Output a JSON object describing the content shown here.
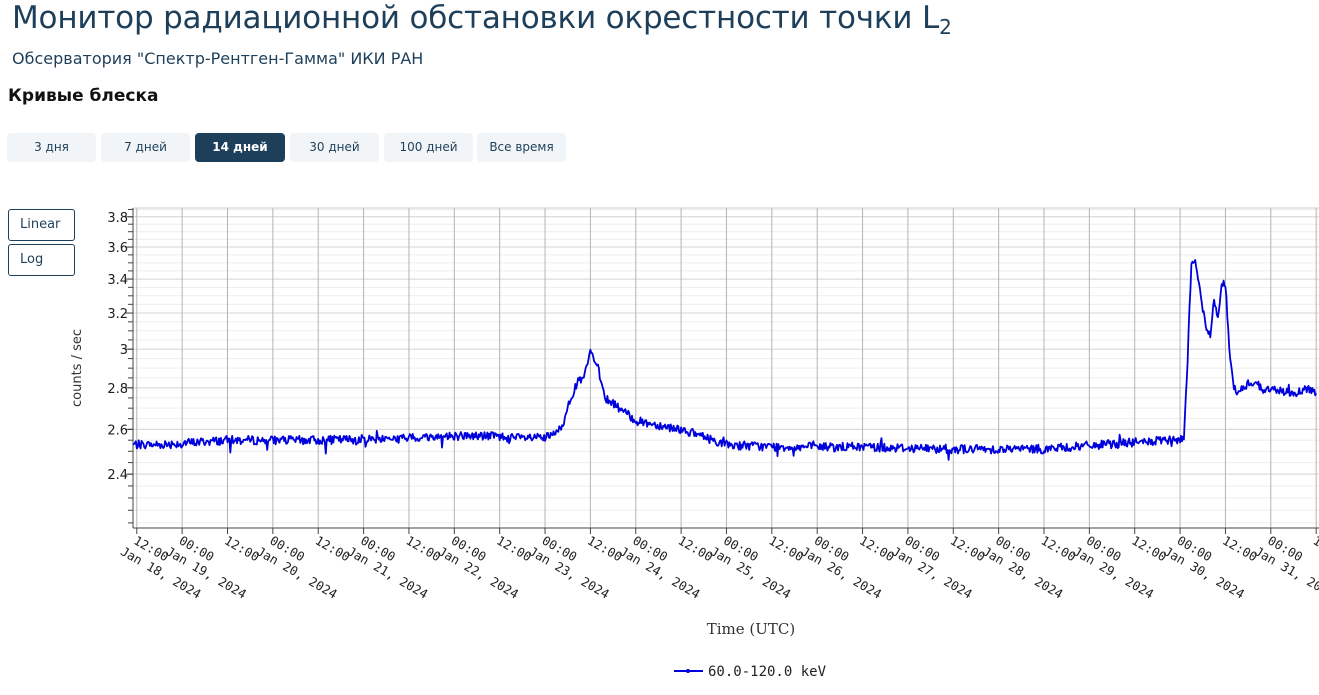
{
  "header": {
    "title": "Монитор радиационной обстановки окрестности точки L",
    "title_sub": "2",
    "subtitle": "Обсерватория \"Спектр-Рентген-Гамма\" ИКИ РАН",
    "section": "Кривые блеска"
  },
  "tabs": [
    {
      "label": "3 дня",
      "active": false
    },
    {
      "label": "7 дней",
      "active": false
    },
    {
      "label": "14 дней",
      "active": true
    },
    {
      "label": "30 дней",
      "active": false
    },
    {
      "label": "100 дней",
      "active": false
    },
    {
      "label": "Все время",
      "active": false
    }
  ],
  "scale_buttons": {
    "linear": "Linear",
    "log": "Log"
  },
  "chart_data": {
    "type": "line",
    "xlabel": "Time (UTC)",
    "ylabel": "counts / sec",
    "y_scale": "log",
    "ylim": [
      2.18,
      3.86
    ],
    "xlim": [
      "2024-01-18T11:00",
      "2024-01-31T12:45"
    ],
    "yticks": [
      2.4,
      2.6,
      2.8,
      3,
      3.2,
      3.4,
      3.6,
      3.8
    ],
    "ytick_labels": [
      "2.4",
      "2.6",
      "2.8",
      "3",
      "3.2",
      "3.4",
      "3.6",
      "3.8"
    ],
    "xticks": [
      {
        "t": "2024-01-18T12:00",
        "l1": "12:00",
        "l2": "Jan 18, 2024"
      },
      {
        "t": "2024-01-19T00:00",
        "l1": "00:00",
        "l2": "Jan 19, 2024"
      },
      {
        "t": "2024-01-19T12:00",
        "l1": "12:00",
        "l2": ""
      },
      {
        "t": "2024-01-20T00:00",
        "l1": "00:00",
        "l2": "Jan 20, 2024"
      },
      {
        "t": "2024-01-20T12:00",
        "l1": "12:00",
        "l2": ""
      },
      {
        "t": "2024-01-21T00:00",
        "l1": "00:00",
        "l2": "Jan 21, 2024"
      },
      {
        "t": "2024-01-21T12:00",
        "l1": "12:00",
        "l2": ""
      },
      {
        "t": "2024-01-22T00:00",
        "l1": "00:00",
        "l2": "Jan 22, 2024"
      },
      {
        "t": "2024-01-22T12:00",
        "l1": "12:00",
        "l2": ""
      },
      {
        "t": "2024-01-23T00:00",
        "l1": "00:00",
        "l2": "Jan 23, 2024"
      },
      {
        "t": "2024-01-23T12:00",
        "l1": "12:00",
        "l2": ""
      },
      {
        "t": "2024-01-24T00:00",
        "l1": "00:00",
        "l2": "Jan 24, 2024"
      },
      {
        "t": "2024-01-24T12:00",
        "l1": "12:00",
        "l2": ""
      },
      {
        "t": "2024-01-25T00:00",
        "l1": "00:00",
        "l2": "Jan 25, 2024"
      },
      {
        "t": "2024-01-25T12:00",
        "l1": "12:00",
        "l2": ""
      },
      {
        "t": "2024-01-26T00:00",
        "l1": "00:00",
        "l2": "Jan 26, 2024"
      },
      {
        "t": "2024-01-26T12:00",
        "l1": "12:00",
        "l2": ""
      },
      {
        "t": "2024-01-27T00:00",
        "l1": "00:00",
        "l2": "Jan 27, 2024"
      },
      {
        "t": "2024-01-27T12:00",
        "l1": "12:00",
        "l2": ""
      },
      {
        "t": "2024-01-28T00:00",
        "l1": "00:00",
        "l2": "Jan 28, 2024"
      },
      {
        "t": "2024-01-28T12:00",
        "l1": "12:00",
        "l2": ""
      },
      {
        "t": "2024-01-29T00:00",
        "l1": "00:00",
        "l2": "Jan 29, 2024"
      },
      {
        "t": "2024-01-29T12:00",
        "l1": "12:00",
        "l2": ""
      },
      {
        "t": "2024-01-30T00:00",
        "l1": "00:00",
        "l2": "Jan 30, 2024"
      },
      {
        "t": "2024-01-30T12:00",
        "l1": "12:00",
        "l2": ""
      },
      {
        "t": "2024-01-31T00:00",
        "l1": "00:00",
        "l2": "Jan 31, 2024"
      },
      {
        "t": "2024-01-31T12:00",
        "l1": "12:00",
        "l2": ""
      }
    ],
    "grid": true,
    "legend_position": "bottom-center",
    "series": [
      {
        "name": "60.0-120.0 keV",
        "color": "#0000dd",
        "x": [
          "2024-01-18T11:00",
          "2024-01-18T18:00",
          "2024-01-19T12:00",
          "2024-01-20T12:00",
          "2024-01-21T12:00",
          "2024-01-22T00:00",
          "2024-01-22T10:00",
          "2024-01-22T16:00",
          "2024-01-22T20:00",
          "2024-01-23T00:00",
          "2024-01-23T03:00",
          "2024-01-23T05:00",
          "2024-01-23T06:00",
          "2024-01-23T08:00",
          "2024-01-23T09:00",
          "2024-01-23T10:00",
          "2024-01-23T11:00",
          "2024-01-23T12:00",
          "2024-01-23T14:00",
          "2024-01-23T16:00",
          "2024-01-24T00:00",
          "2024-01-24T12:00",
          "2024-01-25T00:00",
          "2024-01-25T12:00",
          "2024-01-26T12:00",
          "2024-01-27T12:00",
          "2024-01-28T12:00",
          "2024-01-29T12:00",
          "2024-01-29T23:00",
          "2024-01-30T00:00",
          "2024-01-30T01:00",
          "2024-01-30T02:00",
          "2024-01-30T03:00",
          "2024-01-30T04:00",
          "2024-01-30T05:00",
          "2024-01-30T06:00",
          "2024-01-30T07:00",
          "2024-01-30T08:00",
          "2024-01-30T09:00",
          "2024-01-30T10:00",
          "2024-01-30T11:00",
          "2024-01-30T12:00",
          "2024-01-30T13:00",
          "2024-01-30T14:00",
          "2024-01-30T15:00",
          "2024-01-30T16:00",
          "2024-01-30T17:00",
          "2024-01-30T18:00",
          "2024-01-30T20:00",
          "2024-01-30T22:00",
          "2024-01-31T02:00",
          "2024-01-31T06:00",
          "2024-01-31T10:00",
          "2024-01-31T12:00"
        ],
        "y": [
          2.53,
          2.53,
          2.55,
          2.55,
          2.56,
          2.57,
          2.57,
          2.56,
          2.56,
          2.56,
          2.58,
          2.63,
          2.72,
          2.8,
          2.84,
          2.84,
          2.9,
          2.99,
          2.9,
          2.75,
          2.64,
          2.6,
          2.53,
          2.52,
          2.52,
          2.51,
          2.51,
          2.54,
          2.55,
          2.55,
          2.56,
          2.95,
          3.5,
          3.52,
          3.38,
          3.22,
          3.11,
          3.07,
          3.28,
          3.17,
          3.38,
          3.37,
          3.0,
          2.83,
          2.76,
          2.79,
          2.8,
          2.82,
          2.83,
          2.79,
          2.79,
          2.77,
          2.8,
          2.77
        ]
      }
    ]
  }
}
